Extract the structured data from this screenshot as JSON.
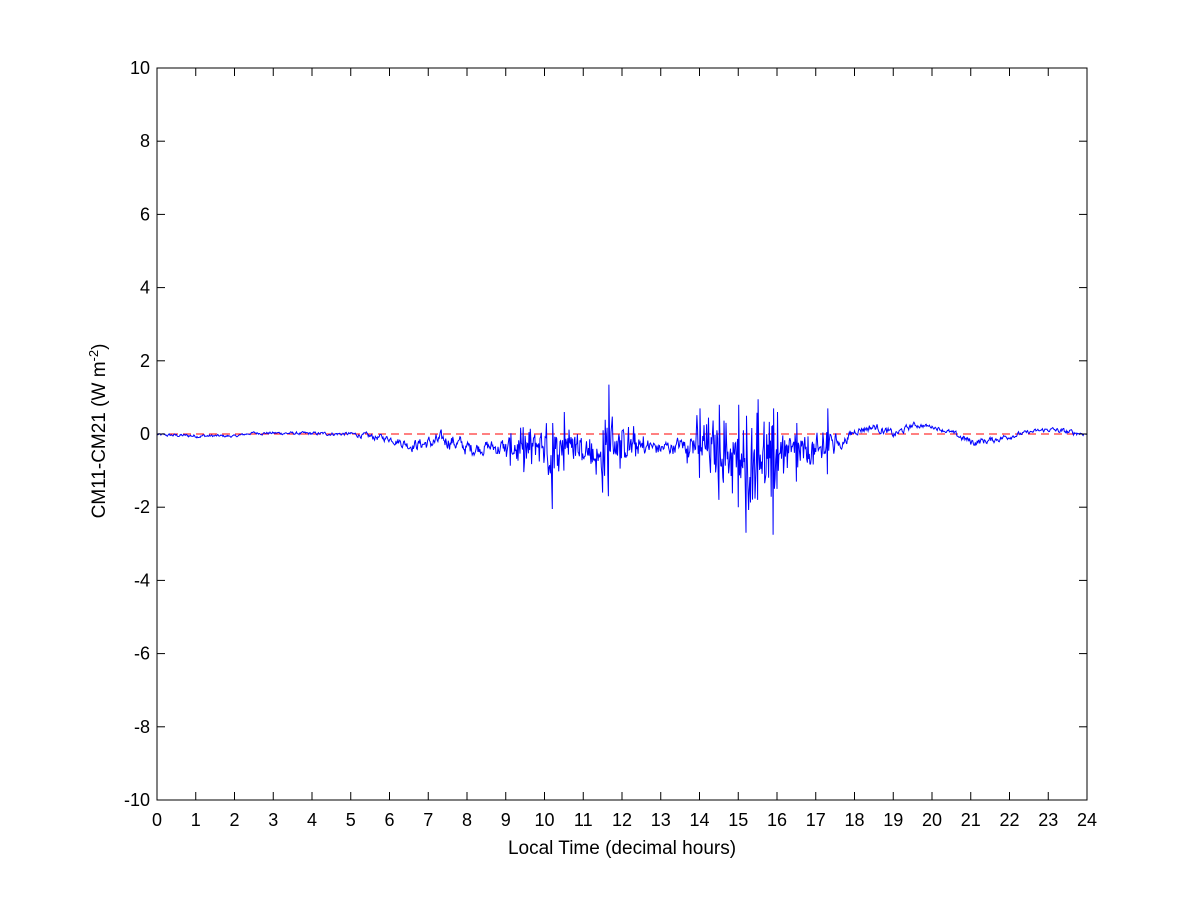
{
  "chart_data": {
    "type": "line",
    "title": "",
    "xlabel": "Local Time (decimal hours)",
    "ylabel": {
      "base": "CM11-CM21 (W m",
      "superscript": "-2",
      "closing": ")"
    },
    "xlim": [
      0,
      24
    ],
    "ylim": [
      -10,
      10
    ],
    "x_ticks": [
      "0",
      "1",
      "2",
      "3",
      "4",
      "5",
      "6",
      "7",
      "8",
      "9",
      "10",
      "11",
      "12",
      "13",
      "14",
      "15",
      "16",
      "17",
      "18",
      "19",
      "20",
      "21",
      "22",
      "23",
      "24"
    ],
    "y_ticks": [
      "-10",
      "-8",
      "-6",
      "-4",
      "-2",
      "0",
      "2",
      "4",
      "6",
      "8",
      "10"
    ],
    "grid": false,
    "legend": "none",
    "colors": {
      "series": "#0000ff",
      "reference": "#ff0000",
      "axes": "#000000"
    },
    "reference_line": {
      "y": 0,
      "style": "dashed"
    },
    "series": [
      {
        "color": "#0000ff",
        "envelope": [
          {
            "x": 0.0,
            "lo": -0.1,
            "hi": 0.05
          },
          {
            "x": 1.0,
            "lo": -0.15,
            "hi": 0.05
          },
          {
            "x": 2.0,
            "lo": -0.12,
            "hi": 0.0
          },
          {
            "x": 2.4,
            "lo": -0.05,
            "hi": 0.1
          },
          {
            "x": 3.0,
            "lo": -0.05,
            "hi": 0.1
          },
          {
            "x": 4.0,
            "lo": -0.08,
            "hi": 0.1
          },
          {
            "x": 5.0,
            "lo": -0.1,
            "hi": 0.1
          },
          {
            "x": 5.5,
            "lo": -0.25,
            "hi": 0.1
          },
          {
            "x": 6.0,
            "lo": -0.3,
            "hi": 0.05
          },
          {
            "x": 6.5,
            "lo": -0.6,
            "hi": 0.0
          },
          {
            "x": 7.0,
            "lo": -0.6,
            "hi": 0.1
          },
          {
            "x": 7.5,
            "lo": -0.6,
            "hi": 0.3
          },
          {
            "x": 8.0,
            "lo": -0.8,
            "hi": 0.0
          },
          {
            "x": 8.5,
            "lo": -0.7,
            "hi": 0.0
          },
          {
            "x": 9.0,
            "lo": -0.9,
            "hi": 0.1
          },
          {
            "x": 9.5,
            "lo": -1.1,
            "hi": 0.3
          },
          {
            "x": 10.0,
            "lo": -1.0,
            "hi": 0.5
          },
          {
            "x": 10.2,
            "lo": -2.05,
            "hi": 0.3
          },
          {
            "x": 10.5,
            "lo": -1.0,
            "hi": 0.6
          },
          {
            "x": 11.0,
            "lo": -1.0,
            "hi": 0.2
          },
          {
            "x": 11.5,
            "lo": -1.6,
            "hi": 0.1
          },
          {
            "x": 11.65,
            "lo": -1.7,
            "hi": 1.35
          },
          {
            "x": 12.0,
            "lo": -1.0,
            "hi": 0.4
          },
          {
            "x": 12.5,
            "lo": -0.9,
            "hi": 0.2
          },
          {
            "x": 13.0,
            "lo": -0.8,
            "hi": 0.0
          },
          {
            "x": 13.5,
            "lo": -0.7,
            "hi": 0.1
          },
          {
            "x": 14.0,
            "lo": -1.2,
            "hi": 0.7
          },
          {
            "x": 14.5,
            "lo": -1.8,
            "hi": 0.8
          },
          {
            "x": 15.0,
            "lo": -2.0,
            "hi": 0.8
          },
          {
            "x": 15.2,
            "lo": -2.7,
            "hi": 0.5
          },
          {
            "x": 15.5,
            "lo": -1.8,
            "hi": 0.95
          },
          {
            "x": 15.9,
            "lo": -2.75,
            "hi": 0.7
          },
          {
            "x": 16.0,
            "lo": -1.5,
            "hi": 0.6
          },
          {
            "x": 16.5,
            "lo": -1.3,
            "hi": 0.3
          },
          {
            "x": 17.0,
            "lo": -1.2,
            "hi": 0.1
          },
          {
            "x": 17.3,
            "lo": -1.1,
            "hi": 0.7
          },
          {
            "x": 17.6,
            "lo": -0.6,
            "hi": 0.0
          },
          {
            "x": 18.0,
            "lo": -0.1,
            "hi": 0.3
          },
          {
            "x": 18.5,
            "lo": 0.0,
            "hi": 0.4
          },
          {
            "x": 19.0,
            "lo": -0.25,
            "hi": 0.2
          },
          {
            "x": 19.5,
            "lo": 0.1,
            "hi": 0.4
          },
          {
            "x": 20.0,
            "lo": 0.1,
            "hi": 0.3
          },
          {
            "x": 20.5,
            "lo": -0.1,
            "hi": 0.15
          },
          {
            "x": 21.0,
            "lo": -0.45,
            "hi": 0.0
          },
          {
            "x": 21.5,
            "lo": -0.35,
            "hi": 0.0
          },
          {
            "x": 22.0,
            "lo": -0.2,
            "hi": 0.1
          },
          {
            "x": 22.5,
            "lo": -0.05,
            "hi": 0.15
          },
          {
            "x": 23.0,
            "lo": 0.0,
            "hi": 0.25
          },
          {
            "x": 23.5,
            "lo": -0.1,
            "hi": 0.2
          },
          {
            "x": 24.0,
            "lo": -0.1,
            "hi": 0.1
          }
        ]
      }
    ]
  }
}
